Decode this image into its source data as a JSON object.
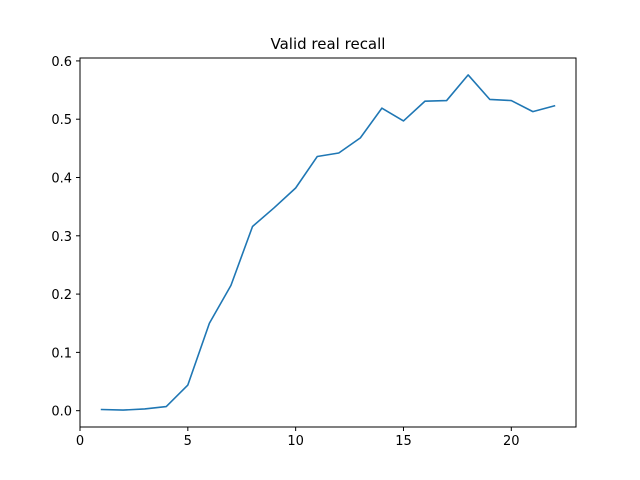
{
  "chart_data": {
    "type": "line",
    "title": "Valid real recall",
    "xlabel": "",
    "ylabel": "",
    "xlim": [
      0,
      23
    ],
    "ylim": [
      -0.028,
      0.605
    ],
    "xticks": [
      0,
      5,
      10,
      15,
      20
    ],
    "yticks": [
      0.0,
      0.1,
      0.2,
      0.3,
      0.4,
      0.5,
      0.6
    ],
    "xtick_labels": [
      "0",
      "5",
      "10",
      "15",
      "20"
    ],
    "ytick_labels": [
      "0.0",
      "0.1",
      "0.2",
      "0.3",
      "0.4",
      "0.5",
      "0.6"
    ],
    "grid": false,
    "legend": "none",
    "series": [
      {
        "color": "#1f77b4",
        "x": [
          1,
          2,
          3,
          4,
          5,
          6,
          7,
          8,
          9,
          10,
          11,
          12,
          13,
          14,
          15,
          16,
          17,
          18,
          19,
          20,
          21,
          22
        ],
        "y": [
          0.002,
          0.001,
          0.003,
          0.007,
          0.044,
          0.15,
          0.215,
          0.316,
          0.348,
          0.382,
          0.436,
          0.442,
          0.468,
          0.519,
          0.497,
          0.531,
          0.532,
          0.576,
          0.534,
          0.532,
          0.513,
          0.523
        ]
      }
    ]
  }
}
